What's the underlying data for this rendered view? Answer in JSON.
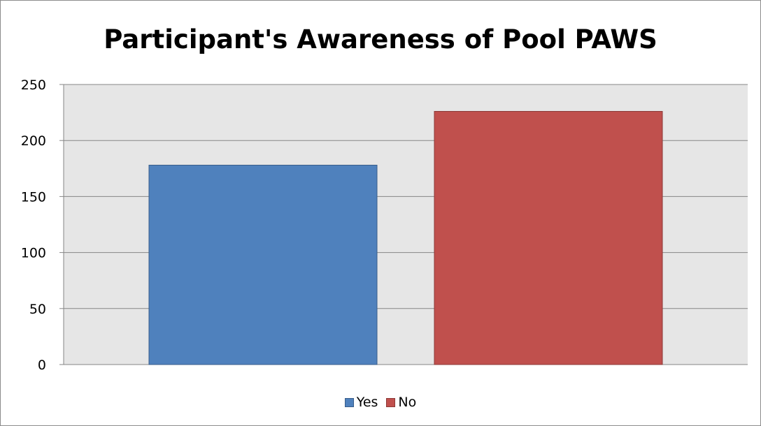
{
  "chart_data": {
    "type": "bar",
    "title": "Participant's Awareness of Pool PAWS",
    "xlabel": "",
    "ylabel": "",
    "categories": [
      ""
    ],
    "series": [
      {
        "name": "Yes",
        "values": [
          178
        ],
        "color": "#4f81bd",
        "stroke": "#385d8a"
      },
      {
        "name": "No",
        "values": [
          226
        ],
        "color": "#c0504d",
        "stroke": "#8c3836"
      }
    ],
    "ylim": [
      0,
      250
    ],
    "yticks": [
      0,
      50,
      100,
      150,
      200,
      250
    ],
    "grid": true,
    "plot_background": "#e6e6e6",
    "legend_position": "bottom"
  }
}
